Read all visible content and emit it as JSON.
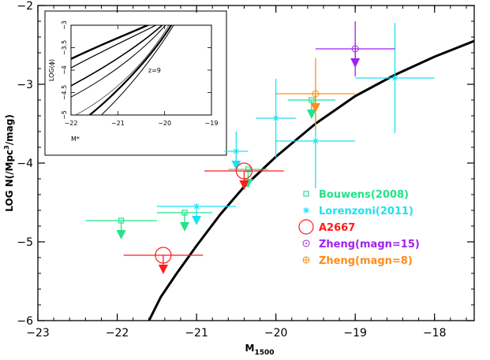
{
  "chart_data": {
    "type": "scatter",
    "xlabel": "M",
    "xlabel_sub": "1500",
    "ylabel": "LOG N(/Mpc",
    "ylabel_sup": "3",
    "ylabel_tail": "/mag)",
    "xlim": [
      -23,
      -17.5
    ],
    "ylim": [
      -6,
      -2
    ],
    "xticks": [
      -23,
      -22,
      -21,
      -20,
      -19,
      -18
    ],
    "yticks": [
      -6,
      -5,
      -4,
      -3,
      -2
    ],
    "xtick_labels": [
      "−23",
      "−22",
      "−21",
      "−20",
      "−19",
      "−18"
    ],
    "ytick_labels": [
      "−6",
      "−5",
      "−4",
      "−3",
      "−2"
    ],
    "model_curve": {
      "color": "#000000",
      "points": [
        [
          -21.6,
          -6.0
        ],
        [
          -21.45,
          -5.7
        ],
        [
          -21.25,
          -5.4
        ],
        [
          -21.0,
          -5.05
        ],
        [
          -20.7,
          -4.65
        ],
        [
          -20.4,
          -4.3
        ],
        [
          -20.0,
          -3.92
        ],
        [
          -19.5,
          -3.5
        ],
        [
          -19.0,
          -3.15
        ],
        [
          -18.5,
          -2.88
        ],
        [
          -18.0,
          -2.65
        ],
        [
          -17.5,
          -2.45
        ]
      ]
    },
    "series": [
      {
        "name": "Bouwens(2008)",
        "color": "#22e38a",
        "marker": "square",
        "points": [
          {
            "x": -21.95,
            "y": -4.73,
            "xerr": 0.45,
            "yerr": 0,
            "upper_limit": true
          },
          {
            "x": -21.15,
            "y": -4.63,
            "xerr": 0.35,
            "yerr": 0,
            "upper_limit": true
          },
          {
            "x": -20.35,
            "y": -4.08,
            "xerr": 0.25,
            "yerr": 0,
            "upper_limit": true
          },
          {
            "x": -19.55,
            "y": -3.2,
            "xerr": 0.3,
            "yerr": 0,
            "upper_limit": true
          }
        ]
      },
      {
        "name": "Lorenzoni(2011)",
        "color": "#1fe0f0",
        "marker": "star",
        "points": [
          {
            "x": -21.0,
            "y": -4.55,
            "xerr": 0.5,
            "yerr": 0,
            "upper_limit": true
          },
          {
            "x": -20.5,
            "y": -3.85,
            "xerr": 0.15,
            "yerr": 0.25,
            "upper_limit": true
          },
          {
            "x": -20.0,
            "y": -3.43,
            "xerr": 0.25,
            "yerr": 0.5,
            "upper_limit": false
          },
          {
            "x": -19.5,
            "y": -3.72,
            "xerr": 0.5,
            "yerr": 0.6,
            "upper_limit": false
          },
          {
            "x": -18.5,
            "y": -2.92,
            "xerr": 0.5,
            "yerr": 0.7,
            "upper_limit": false
          }
        ]
      },
      {
        "name": "A2667",
        "color": "#ff1a1a",
        "marker": "big-circle",
        "points": [
          {
            "x": -21.42,
            "y": -5.17,
            "xerr": 0.5,
            "yerr": 0,
            "upper_limit": true
          },
          {
            "x": -20.4,
            "y": -4.1,
            "xerr": 0.5,
            "yerr": 0,
            "upper_limit": true
          }
        ]
      },
      {
        "name": "Zheng(magn=15)",
        "color": "#a020f0",
        "marker": "dot-circle",
        "points": [
          {
            "x": -19.0,
            "y": -2.55,
            "xerr": 0.5,
            "yerr": 0.35,
            "upper_limit": true
          }
        ]
      },
      {
        "name": "Zheng(magn=8)",
        "color": "#ff8c1a",
        "marker": "plus-circle",
        "points": [
          {
            "x": -19.5,
            "y": -3.12,
            "xerr": 0.5,
            "yerr": 0.45,
            "upper_limit": true
          }
        ]
      }
    ],
    "inset": {
      "xlabel": "M*",
      "ylabel": "LOG(ϕ)",
      "annotation": "z=9",
      "xlim": [
        -22,
        -19
      ],
      "ylim": [
        -5,
        -3
      ],
      "xticks": [
        -22,
        -21,
        -20,
        -19
      ],
      "yticks": [
        -5,
        -4.5,
        -4,
        -3.5,
        -3
      ],
      "xtick_labels": [
        "−22",
        "−21",
        "−20",
        "−19"
      ],
      "ytick_labels": [
        "−5",
        "−4.5",
        "−4",
        "−3.5",
        "−3"
      ]
    }
  }
}
